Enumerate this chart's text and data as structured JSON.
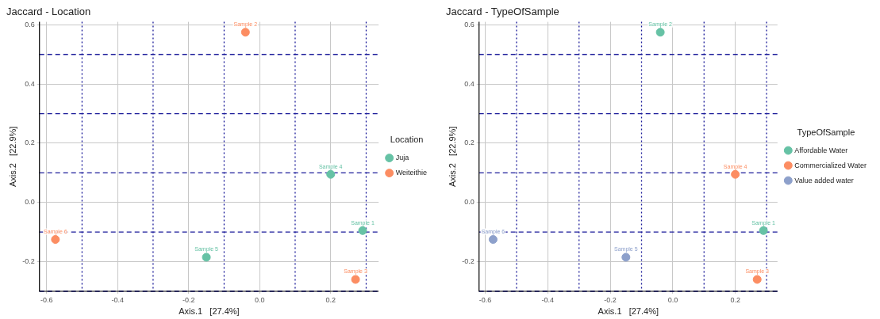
{
  "chart_data": [
    {
      "type": "scatter",
      "title": "Jaccard - Location",
      "xlabel": "Axis.1   [27.4%]",
      "ylabel": "Axis.2   [22.9%]",
      "legend_title": "Location",
      "legend": "right",
      "grid": true,
      "marker": "circle",
      "xlim": [
        -0.62,
        0.335
      ],
      "ylim": [
        -0.3,
        0.61
      ],
      "xticks": [
        -0.6,
        -0.4,
        -0.2,
        {
          "value": 0,
          "label": "0.0"
        },
        0.2
      ],
      "yticks": [
        -0.2,
        {
          "value": 0,
          "label": "0.0"
        },
        0.2,
        0.4,
        0.6
      ],
      "series": [
        {
          "name": "Juja",
          "color": "#66c2a5",
          "x": [
            0.29,
            0.2,
            -0.15
          ],
          "values": [
            -0.095,
            0.095,
            -0.185
          ]
        },
        {
          "name": "Weiteithie",
          "color": "#fc8d62",
          "x": [
            -0.04,
            0.27,
            -0.575
          ],
          "values": [
            0.575,
            -0.26,
            -0.125
          ]
        }
      ],
      "ref_lines": [
        {
          "axis": "x",
          "value": -0.5,
          "color": "#1a1a99",
          "line_style": "dotted"
        },
        {
          "axis": "x",
          "value": -0.3,
          "color": "#1a1a99",
          "line_style": "dotted"
        },
        {
          "axis": "x",
          "value": -0.1,
          "color": "#1a1a99",
          "line_style": "dotted"
        },
        {
          "axis": "x",
          "value": 0.1,
          "color": "#1a1a99",
          "line_style": "dotted"
        },
        {
          "axis": "x",
          "value": 0.3,
          "color": "#1a1a99",
          "line_style": "dotted"
        },
        {
          "axis": "y",
          "value": -0.3,
          "color": "#1a1a99",
          "line_style": "dashed"
        },
        {
          "axis": "y",
          "value": -0.1,
          "color": "#1a1a99",
          "line_style": "dashed"
        },
        {
          "axis": "y",
          "value": 0.1,
          "color": "#1a1a99",
          "line_style": "dashed"
        },
        {
          "axis": "y",
          "value": 0.3,
          "color": "#1a1a99",
          "line_style": "dashed"
        },
        {
          "axis": "y",
          "value": 0.5,
          "color": "#1a1a99",
          "line_style": "dashed"
        }
      ],
      "annotations": [
        {
          "text": "Sample 1",
          "x": 0.29,
          "y": -0.095
        },
        {
          "text": "Sample 2",
          "x": -0.04,
          "y": 0.575
        },
        {
          "text": "Sample 3",
          "x": 0.27,
          "y": -0.26
        },
        {
          "text": "Sample 4",
          "x": 0.2,
          "y": 0.095
        },
        {
          "text": "Sample 5",
          "x": -0.15,
          "y": -0.185
        },
        {
          "text": "Sample 6",
          "x": -0.575,
          "y": -0.125
        }
      ]
    },
    {
      "type": "scatter",
      "title": "Jaccard - TypeOfSample",
      "xlabel": "Axis.1   [27.4%]",
      "ylabel": "Axis.2   [22.9%]",
      "legend_title": "TypeOfSample",
      "legend": "right",
      "grid": true,
      "marker": "circle",
      "xlim": [
        -0.62,
        0.335
      ],
      "ylim": [
        -0.3,
        0.61
      ],
      "xticks": [
        -0.6,
        -0.4,
        -0.2,
        {
          "value": 0,
          "label": "0.0"
        },
        0.2
      ],
      "yticks": [
        -0.2,
        {
          "value": 0,
          "label": "0.0"
        },
        0.2,
        0.4,
        0.6
      ],
      "series": [
        {
          "name": "Affordable Water",
          "color": "#66c2a5",
          "x": [
            0.29,
            -0.04
          ],
          "values": [
            -0.095,
            0.575
          ]
        },
        {
          "name": "Commercialized Water",
          "color": "#fc8d62",
          "x": [
            0.27,
            0.2
          ],
          "values": [
            -0.26,
            0.095
          ]
        },
        {
          "name": "Value added water",
          "color": "#8da0cb",
          "x": [
            -0.15,
            -0.575
          ],
          "values": [
            -0.185,
            -0.125
          ]
        }
      ],
      "ref_lines": [
        {
          "axis": "x",
          "value": -0.5,
          "color": "#1a1a99",
          "line_style": "dotted"
        },
        {
          "axis": "x",
          "value": -0.3,
          "color": "#1a1a99",
          "line_style": "dotted"
        },
        {
          "axis": "x",
          "value": -0.1,
          "color": "#1a1a99",
          "line_style": "dotted"
        },
        {
          "axis": "x",
          "value": 0.1,
          "color": "#1a1a99",
          "line_style": "dotted"
        },
        {
          "axis": "x",
          "value": 0.3,
          "color": "#1a1a99",
          "line_style": "dotted"
        },
        {
          "axis": "y",
          "value": -0.3,
          "color": "#1a1a99",
          "line_style": "dashed"
        },
        {
          "axis": "y",
          "value": -0.1,
          "color": "#1a1a99",
          "line_style": "dashed"
        },
        {
          "axis": "y",
          "value": 0.1,
          "color": "#1a1a99",
          "line_style": "dashed"
        },
        {
          "axis": "y",
          "value": 0.3,
          "color": "#1a1a99",
          "line_style": "dashed"
        },
        {
          "axis": "y",
          "value": 0.5,
          "color": "#1a1a99",
          "line_style": "dashed"
        }
      ],
      "annotations": [
        {
          "text": "Sample 1",
          "x": 0.29,
          "y": -0.095
        },
        {
          "text": "Sample 2",
          "x": -0.04,
          "y": 0.575
        },
        {
          "text": "Sample 3",
          "x": 0.27,
          "y": -0.26
        },
        {
          "text": "Sample 4",
          "x": 0.2,
          "y": 0.095
        },
        {
          "text": "Sample 5",
          "x": -0.15,
          "y": -0.185
        },
        {
          "text": "Sample 6",
          "x": -0.575,
          "y": -0.125
        }
      ]
    }
  ]
}
